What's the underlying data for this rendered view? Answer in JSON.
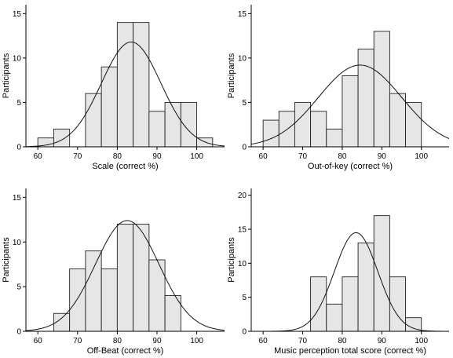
{
  "chart_data": [
    {
      "type": "bar",
      "subtype": "histogram_with_normal_curve",
      "xlabel": "Scale (correct %)",
      "ylabel": "Participants",
      "xlim": [
        57,
        107
      ],
      "ylim": [
        0,
        16
      ],
      "xticks": [
        60,
        70,
        80,
        90,
        100
      ],
      "yticks": [
        0,
        5,
        10,
        15
      ],
      "bins": [
        {
          "x0": 60,
          "x1": 64,
          "count": 1
        },
        {
          "x0": 64,
          "x1": 68,
          "count": 2
        },
        {
          "x0": 68,
          "x1": 72,
          "count": 0
        },
        {
          "x0": 72,
          "x1": 76,
          "count": 6
        },
        {
          "x0": 76,
          "x1": 80,
          "count": 9
        },
        {
          "x0": 80,
          "x1": 84,
          "count": 14
        },
        {
          "x0": 84,
          "x1": 88,
          "count": 14
        },
        {
          "x0": 88,
          "x1": 92,
          "count": 4
        },
        {
          "x0": 92,
          "x1": 96,
          "count": 5
        },
        {
          "x0": 96,
          "x1": 100,
          "count": 5
        },
        {
          "x0": 100,
          "x1": 104,
          "count": 1
        }
      ],
      "normal_curve": {
        "mean": 83.5,
        "sd": 7.5,
        "peak": 11.8
      }
    },
    {
      "type": "bar",
      "subtype": "histogram_with_normal_curve",
      "xlabel": "Out-of-key (correct %)",
      "ylabel": "Participants",
      "xlim": [
        57,
        107
      ],
      "ylim": [
        0,
        16
      ],
      "xticks": [
        60,
        70,
        80,
        90,
        100
      ],
      "yticks": [
        0,
        5,
        10,
        15
      ],
      "bins": [
        {
          "x0": 60,
          "x1": 64,
          "count": 3
        },
        {
          "x0": 64,
          "x1": 68,
          "count": 4
        },
        {
          "x0": 68,
          "x1": 72,
          "count": 5
        },
        {
          "x0": 72,
          "x1": 76,
          "count": 4
        },
        {
          "x0": 76,
          "x1": 80,
          "count": 2
        },
        {
          "x0": 80,
          "x1": 84,
          "count": 8
        },
        {
          "x0": 84,
          "x1": 88,
          "count": 11
        },
        {
          "x0": 88,
          "x1": 92,
          "count": 13
        },
        {
          "x0": 92,
          "x1": 96,
          "count": 6
        },
        {
          "x0": 96,
          "x1": 100,
          "count": 5
        }
      ],
      "normal_curve": {
        "mean": 84.5,
        "sd": 10.5,
        "peak": 9.2
      }
    },
    {
      "type": "bar",
      "subtype": "histogram_with_normal_curve",
      "xlabel": "Off-Beat (correct %)",
      "ylabel": "Participants",
      "xlim": [
        57,
        107
      ],
      "ylim": [
        0,
        16
      ],
      "xticks": [
        60,
        70,
        80,
        90,
        100
      ],
      "yticks": [
        0,
        5,
        10,
        15
      ],
      "bins": [
        {
          "x0": 64,
          "x1": 68,
          "count": 2
        },
        {
          "x0": 68,
          "x1": 72,
          "count": 7
        },
        {
          "x0": 72,
          "x1": 76,
          "count": 9
        },
        {
          "x0": 76,
          "x1": 80,
          "count": 7
        },
        {
          "x0": 80,
          "x1": 84,
          "count": 12
        },
        {
          "x0": 84,
          "x1": 88,
          "count": 12
        },
        {
          "x0": 88,
          "x1": 92,
          "count": 8
        },
        {
          "x0": 92,
          "x1": 96,
          "count": 4
        }
      ],
      "normal_curve": {
        "mean": 82.5,
        "sd": 8.0,
        "peak": 12.4
      }
    },
    {
      "type": "bar",
      "subtype": "histogram_with_normal_curve",
      "xlabel": "Music perception total score (correct %)",
      "ylabel": "Participants",
      "xlim": [
        57,
        107
      ],
      "ylim": [
        0,
        21
      ],
      "xticks": [
        60,
        70,
        80,
        90,
        100
      ],
      "yticks": [
        0,
        5,
        10,
        15,
        20
      ],
      "bins": [
        {
          "x0": 72,
          "x1": 76,
          "count": 8
        },
        {
          "x0": 76,
          "x1": 80,
          "count": 4
        },
        {
          "x0": 80,
          "x1": 84,
          "count": 8
        },
        {
          "x0": 84,
          "x1": 88,
          "count": 13
        },
        {
          "x0": 88,
          "x1": 92,
          "count": 17
        },
        {
          "x0": 92,
          "x1": 96,
          "count": 8
        },
        {
          "x0": 96,
          "x1": 100,
          "count": 2
        }
      ],
      "normal_curve": {
        "mean": 83.5,
        "sd": 5.5,
        "peak": 14.5
      }
    }
  ]
}
